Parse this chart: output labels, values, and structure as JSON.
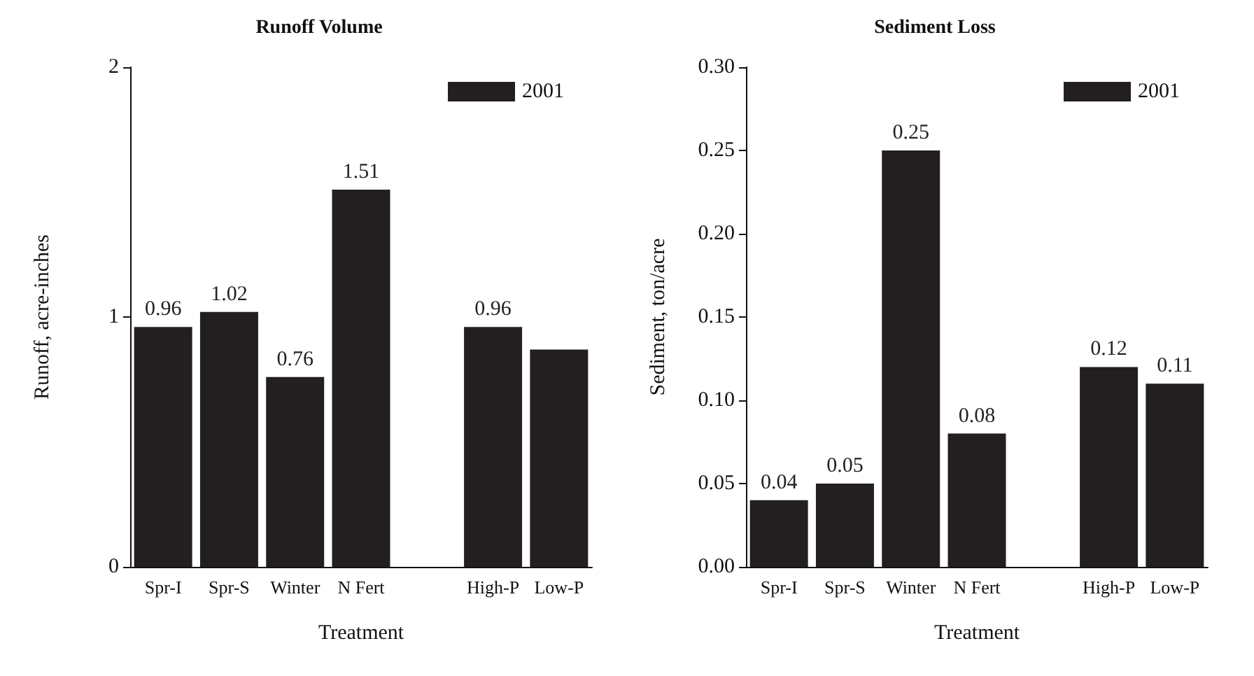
{
  "chart_data": [
    {
      "type": "bar",
      "title": "Runoff Volume",
      "xlabel": "Treatment",
      "ylabel": "Runoff, acre-inches",
      "categories": [
        "Spr-I",
        "Spr-S",
        "Winter",
        "N Fert",
        null,
        "High-P",
        "Low-P"
      ],
      "series": [
        {
          "name": "2001",
          "color": "#231f20",
          "values": [
            0.96,
            1.02,
            0.76,
            1.51,
            null,
            0.96,
            0.87
          ],
          "value_labels": [
            "0.96",
            "1.02",
            "0.76",
            "1.51",
            null,
            "0.96",
            null
          ]
        }
      ],
      "ylim": [
        0,
        2
      ],
      "yticks": [
        0,
        1,
        2
      ],
      "legend": "top right",
      "grid": false
    },
    {
      "type": "bar",
      "title": "Sediment Loss",
      "xlabel": "Treatment",
      "ylabel": "Sediment, ton/acre",
      "categories": [
        "Spr-I",
        "Spr-S",
        "Winter",
        "N Fert",
        null,
        "High-P",
        "Low-P"
      ],
      "series": [
        {
          "name": "2001",
          "color": "#231f20",
          "values": [
            0.04,
            0.05,
            0.25,
            0.08,
            null,
            0.12,
            0.11
          ]
        }
      ],
      "data_labels": true,
      "ylim": [
        0,
        0.3
      ],
      "yticks": [
        {
          "value": 0,
          "label": "0.00"
        },
        {
          "value": 0.05,
          "label": "0.05"
        },
        {
          "value": 0.1,
          "label": "0.10"
        },
        {
          "value": 0.15,
          "label": "0.15"
        },
        {
          "value": 0.2,
          "label": "0.20"
        },
        {
          "value": 0.25,
          "label": "0.25"
        },
        {
          "value": 0.3,
          "label": "0.30"
        }
      ],
      "legend": "top right",
      "grid": false
    }
  ]
}
